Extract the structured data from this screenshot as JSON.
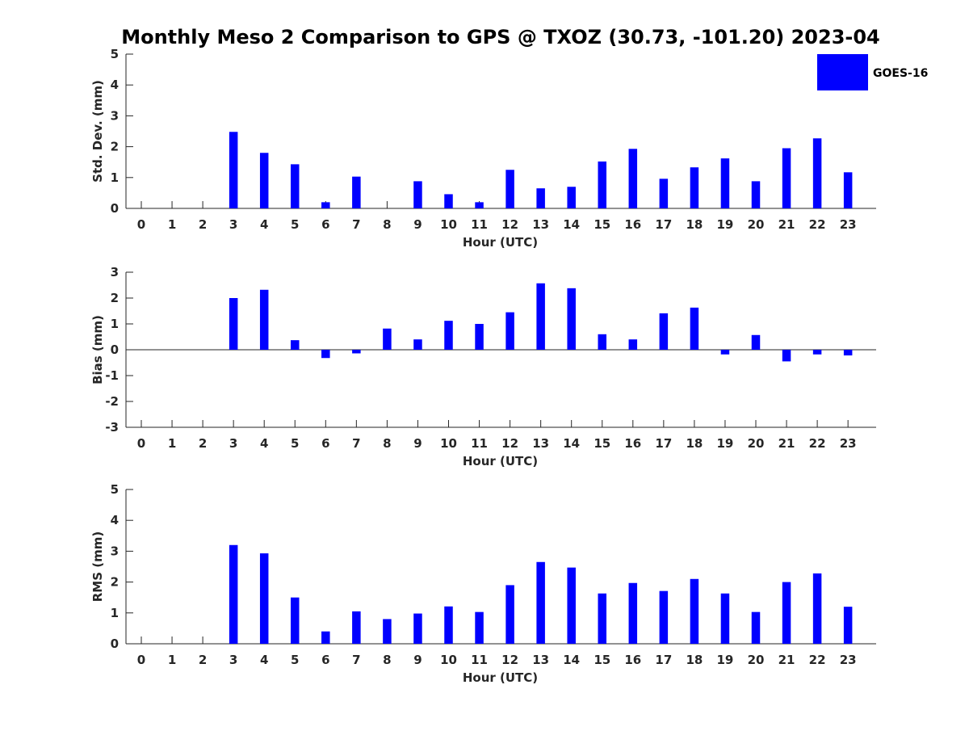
{
  "title": "Monthly Meso 2 Comparison to GPS @ TXOZ (30.73, -101.20) 2023-04",
  "legend": {
    "label": "GOES-16",
    "color": "#0000ff",
    "placement": "top-right"
  },
  "chart_data": [
    {
      "type": "bar",
      "ylabel": "Std. Dev. (mm)",
      "xlabel": "Hour (UTC)",
      "ylim": [
        0,
        5
      ],
      "yticks": [
        0,
        1,
        2,
        3,
        4,
        5
      ],
      "categories": [
        "0",
        "1",
        "2",
        "3",
        "4",
        "5",
        "6",
        "7",
        "8",
        "9",
        "10",
        "11",
        "12",
        "13",
        "14",
        "15",
        "16",
        "17",
        "18",
        "19",
        "20",
        "21",
        "22",
        "23"
      ],
      "series": [
        {
          "name": "GOES-16",
          "values": [
            null,
            null,
            null,
            2.48,
            1.8,
            1.43,
            0.2,
            1.03,
            null,
            0.88,
            0.46,
            0.2,
            1.25,
            0.65,
            0.7,
            1.52,
            1.93,
            0.96,
            1.33,
            1.62,
            0.88,
            1.95,
            2.27,
            1.17
          ]
        }
      ]
    },
    {
      "type": "bar",
      "ylabel": "Bias (mm)",
      "xlabel": "Hour (UTC)",
      "ylim": [
        -3,
        3
      ],
      "yticks": [
        -3,
        -2,
        -1,
        0,
        1,
        2,
        3
      ],
      "categories": [
        "0",
        "1",
        "2",
        "3",
        "4",
        "5",
        "6",
        "7",
        "8",
        "9",
        "10",
        "11",
        "12",
        "13",
        "14",
        "15",
        "16",
        "17",
        "18",
        "19",
        "20",
        "21",
        "22",
        "23"
      ],
      "series": [
        {
          "name": "GOES-16",
          "values": [
            null,
            null,
            null,
            2.0,
            2.32,
            0.37,
            -0.32,
            -0.14,
            0.82,
            0.4,
            1.12,
            1.0,
            1.45,
            2.57,
            2.38,
            0.6,
            0.4,
            1.41,
            1.63,
            -0.18,
            0.57,
            -0.45,
            -0.18,
            -0.22
          ]
        }
      ]
    },
    {
      "type": "bar",
      "ylabel": "RMS (mm)",
      "xlabel": "Hour (UTC)",
      "ylim": [
        0,
        5
      ],
      "yticks": [
        0,
        1,
        2,
        3,
        4,
        5
      ],
      "categories": [
        "0",
        "1",
        "2",
        "3",
        "4",
        "5",
        "6",
        "7",
        "8",
        "9",
        "10",
        "11",
        "12",
        "13",
        "14",
        "15",
        "16",
        "17",
        "18",
        "19",
        "20",
        "21",
        "22",
        "23"
      ],
      "series": [
        {
          "name": "GOES-16",
          "values": [
            null,
            null,
            null,
            3.2,
            2.93,
            1.5,
            0.4,
            1.05,
            0.8,
            0.98,
            1.21,
            1.03,
            1.9,
            2.65,
            2.47,
            1.63,
            1.97,
            1.71,
            2.1,
            1.63,
            1.03,
            2.0,
            2.28,
            1.2
          ]
        }
      ]
    }
  ]
}
